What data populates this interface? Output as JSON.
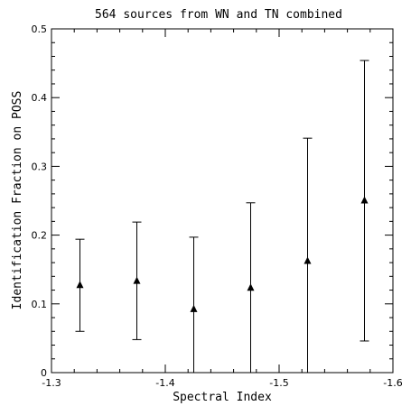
{
  "chart_data": {
    "type": "scatter",
    "title": "564 sources from WN and TN combined",
    "xlabel": "Spectral Index",
    "ylabel": "Identification Fraction on POSS",
    "xlim": [
      -1.3,
      -1.6
    ],
    "ylim": [
      0,
      0.5
    ],
    "x_reversed": true,
    "grid": false,
    "xticks_labeled": [
      -1.3,
      -1.4,
      -1.5,
      -1.6
    ],
    "xtick_labels": [
      "-1.3",
      "-1.4",
      "-1.5",
      "-1.6"
    ],
    "yticks_labeled": [
      0,
      0.1,
      0.2,
      0.3,
      0.4,
      0.5
    ],
    "ytick_labels": [
      "0",
      "0.1",
      "0.2",
      "0.3",
      "0.4",
      "0.5"
    ],
    "marker": "triangle",
    "points": [
      {
        "x": -1.325,
        "y": 0.127,
        "yerr_low": 0.06,
        "yerr_high": 0.194
      },
      {
        "x": -1.375,
        "y": 0.133,
        "yerr_low": 0.048,
        "yerr_high": 0.219
      },
      {
        "x": -1.425,
        "y": 0.092,
        "yerr_low": 0.0,
        "yerr_high": 0.197
      },
      {
        "x": -1.475,
        "y": 0.123,
        "yerr_low": 0.0,
        "yerr_high": 0.247
      },
      {
        "x": -1.525,
        "y": 0.162,
        "yerr_low": 0.0,
        "yerr_high": 0.341
      },
      {
        "x": -1.575,
        "y": 0.25,
        "yerr_low": 0.046,
        "yerr_high": 0.454
      }
    ]
  }
}
